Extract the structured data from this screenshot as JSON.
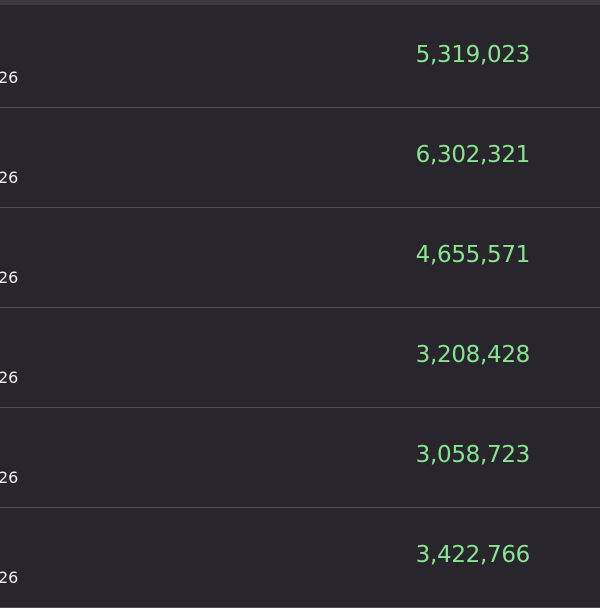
{
  "colors": {
    "background": "#28262c",
    "value": "#86e58c",
    "label": "#f0f0f0",
    "divider": "#4d4c52"
  },
  "rows": [
    {
      "label": "26",
      "value": "5,319,023"
    },
    {
      "label": "26",
      "value": "6,302,321"
    },
    {
      "label": "26",
      "value": "4,655,571"
    },
    {
      "label": "26",
      "value": "3,208,428"
    },
    {
      "label": "26",
      "value": "3,058,723"
    },
    {
      "label": "26",
      "value": "3,422,766"
    }
  ]
}
